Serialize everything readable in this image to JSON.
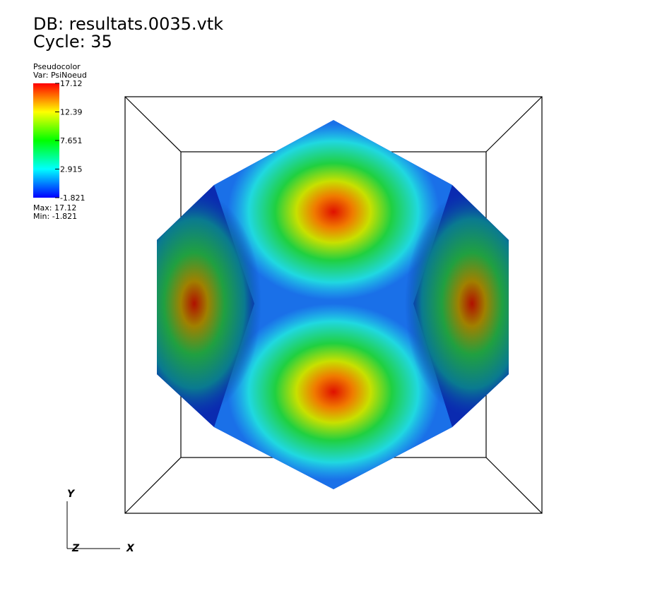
{
  "header": {
    "database": "DB: resultats.0035.vtk",
    "cycle": "Cycle: 35"
  },
  "legend": {
    "plot": "Pseudocolor",
    "variable": "Var: PsiNoeud",
    "tick_labels": [
      "17.12",
      "12.39",
      "7.651",
      "2.915",
      "-1.821"
    ],
    "max": "Max: 17.12",
    "min": "Min: -1.821"
  },
  "axes": {
    "y": "Y",
    "z": "Z",
    "x": "X"
  }
}
